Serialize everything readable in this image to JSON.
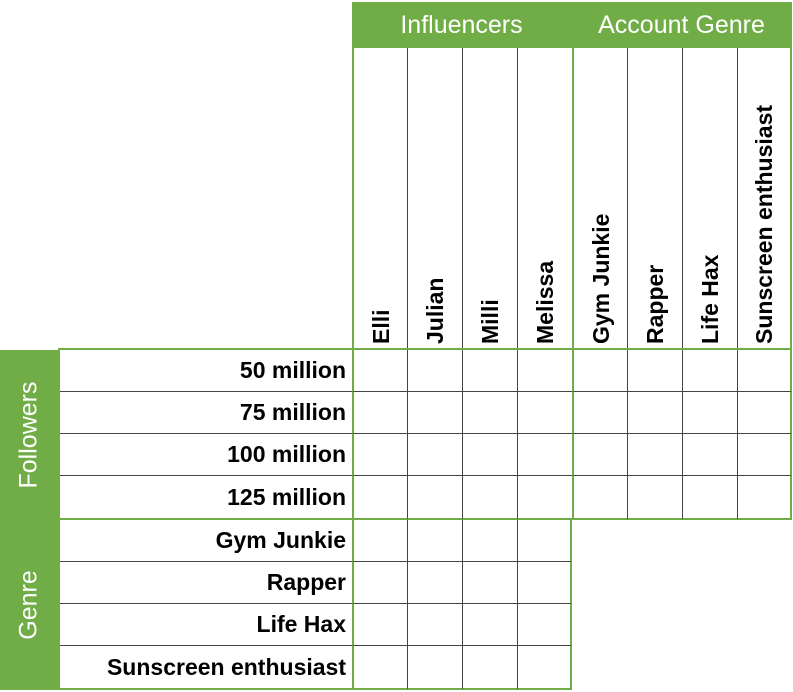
{
  "header": {
    "group_influencers": "Influencers",
    "group_account_genre": "Account Genre"
  },
  "columns": [
    "Elli",
    "Julian",
    "Milli",
    "Melissa",
    "Gym Junkie",
    "Rapper",
    "Life Hax",
    "Sunscreen enthusiast"
  ],
  "sections": {
    "followers": {
      "label": "Followers",
      "rows": [
        "50 million",
        "75 million",
        "100 million",
        "125 million"
      ]
    },
    "genre": {
      "label": "Genre",
      "rows": [
        "Gym Junkie",
        "Rapper",
        "Life Hax",
        "Sunscreen enthusiast"
      ]
    }
  },
  "colors": {
    "accent": "#70ad47",
    "grid": "#444444"
  }
}
